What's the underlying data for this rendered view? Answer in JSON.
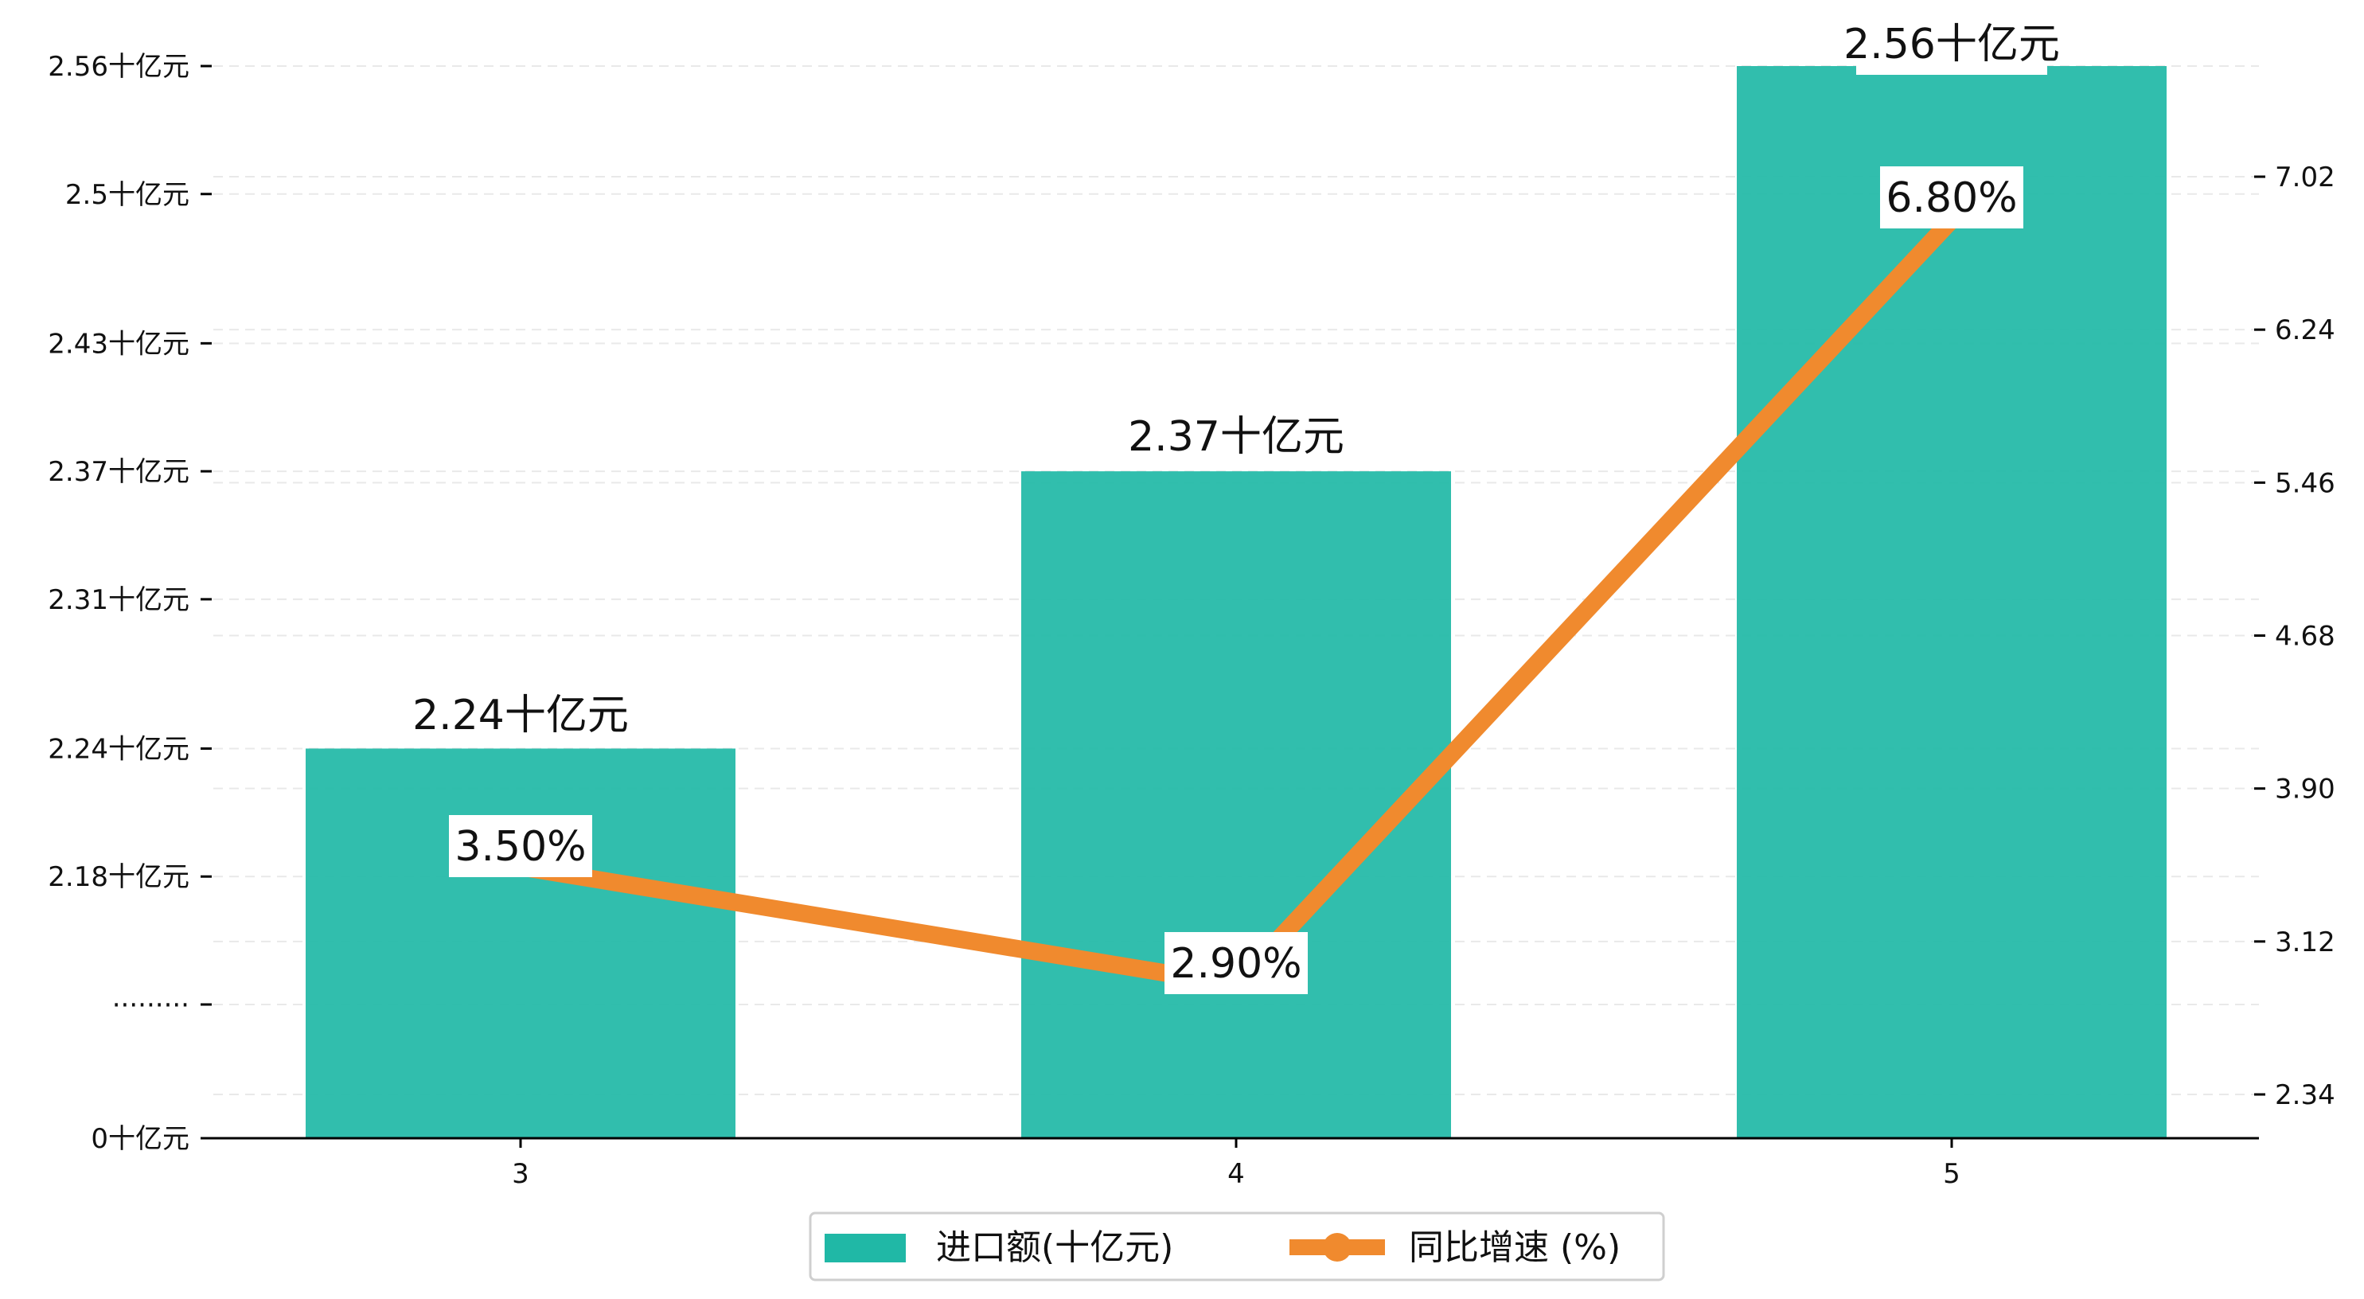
{
  "chart_data": {
    "type": "bar+line",
    "categories": [
      "3",
      "4",
      "5"
    ],
    "series": [
      {
        "name": "进口额(十亿元)",
        "kind": "bar",
        "axis": "left",
        "values": [
          2.24,
          2.37,
          2.56
        ],
        "labels": [
          "2.24十亿元",
          "2.37十亿元",
          "2.56十亿元"
        ],
        "color": "#20B8A6"
      },
      {
        "name": "同比增速 (%)",
        "kind": "line",
        "axis": "right",
        "values": [
          3.5,
          2.9,
          6.8
        ],
        "labels": [
          "3.50%",
          "2.90%",
          "6.80%"
        ],
        "color": "#F08A2E"
      }
    ],
    "left_axis": {
      "ticks": [
        {
          "value": 0,
          "label": "0十亿元"
        },
        {
          "value": 2.12,
          "label": "·········"
        },
        {
          "value": 2.18,
          "label": "2.18十亿元"
        },
        {
          "value": 2.24,
          "label": "2.24十亿元"
        },
        {
          "value": 2.31,
          "label": "2.31十亿元"
        },
        {
          "value": 2.37,
          "label": "2.37十亿元"
        },
        {
          "value": 2.43,
          "label": "2.43十亿元"
        },
        {
          "value": 2.5,
          "label": "2.5十亿元"
        },
        {
          "value": 2.56,
          "label": "2.56十亿元"
        }
      ],
      "break": true
    },
    "right_axis": {
      "ylim": [
        2.1,
        7.3
      ],
      "ticks": [
        2.34,
        3.12,
        3.9,
        4.68,
        5.46,
        6.24,
        7.02
      ],
      "tick_labels": [
        "2.34",
        "3.12",
        "3.90",
        "4.68",
        "5.46",
        "6.24",
        "7.02"
      ]
    },
    "grid": "horizontal-dashed",
    "legend": "bottom-center"
  }
}
